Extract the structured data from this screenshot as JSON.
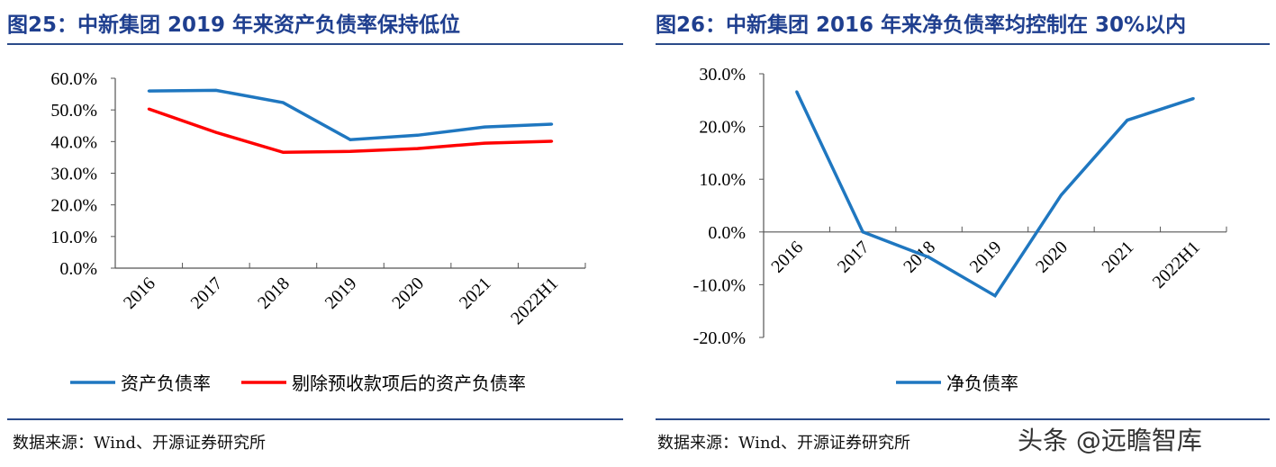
{
  "chart_data": [
    {
      "type": "line",
      "title": "图25：中新集团 2019 年来资产负债率保持低位",
      "categories": [
        "2016",
        "2017",
        "2018",
        "2019",
        "2020",
        "2021",
        "2022H1"
      ],
      "series": [
        {
          "name": "资产负债率",
          "color": "#1f77c0",
          "values": [
            56.0,
            56.2,
            52.3,
            40.6,
            42.0,
            44.6,
            45.5
          ]
        },
        {
          "name": "剔除预收款项后的资产负债率",
          "color": "#ff0000",
          "values": [
            50.3,
            42.9,
            36.6,
            36.9,
            37.8,
            39.5,
            40.1
          ]
        }
      ],
      "ylim": [
        0,
        60
      ],
      "yticks": [
        "0.0%",
        "10.0%",
        "20.0%",
        "30.0%",
        "40.0%",
        "50.0%",
        "60.0%"
      ],
      "grid": false,
      "legend": "bottom",
      "source": "数据来源：Wind、开源证券研究所"
    },
    {
      "type": "line",
      "title": "图26：中新集团 2016 年来净负债率均控制在 30%以内",
      "categories": [
        "2016",
        "2017",
        "2018",
        "2019",
        "2020",
        "2021",
        "2022H1"
      ],
      "series": [
        {
          "name": "净负债率",
          "color": "#1f77c0",
          "values": [
            26.6,
            0.0,
            -4.8,
            -12.1,
            7.0,
            21.2,
            25.3
          ]
        }
      ],
      "ylim": [
        -20,
        30
      ],
      "yticks": [
        "-20.0%",
        "-10.0%",
        "0.0%",
        "10.0%",
        "20.0%",
        "30.0%"
      ],
      "grid": false,
      "legend": "bottom",
      "source": "数据来源：Wind、开源证券研究所"
    }
  ],
  "watermark": "头条 @远瞻智库"
}
